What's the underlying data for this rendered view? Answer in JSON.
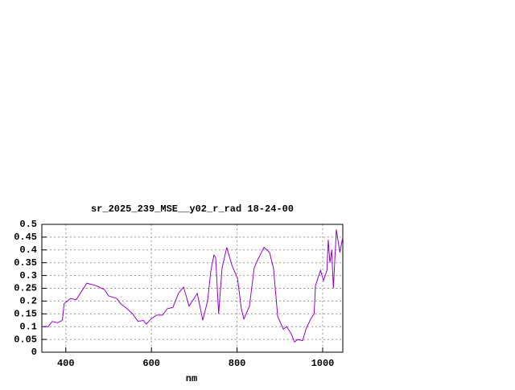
{
  "chart_data": {
    "type": "line",
    "title": "sr_2025_239_MSE__y02_r_rad 18-24-00",
    "x_label": "nm",
    "series": [
      {
        "color": "#9400d3",
        "x": [
          344,
          359,
          368,
          381,
          392,
          396,
          411,
          424,
          449,
          471,
          490,
          500,
          519,
          528,
          543,
          556,
          569,
          581,
          588,
          599,
          612,
          626,
          637,
          650,
          663,
          675,
          688,
          707,
          720,
          731,
          739,
          746,
          750,
          757,
          765,
          776,
          788,
          801,
          810,
          816,
          829,
          840,
          848,
          863,
          876,
          885,
          895,
          908,
          916,
          927,
          934,
          942,
          953,
          961,
          972,
          980,
          983,
          995,
          1002,
          1010,
          1013,
          1017,
          1021,
          1025,
          1032,
          1040,
          1047
        ],
        "values": [
          0.1,
          0.1,
          0.12,
          0.115,
          0.125,
          0.19,
          0.21,
          0.205,
          0.27,
          0.26,
          0.245,
          0.22,
          0.21,
          0.19,
          0.17,
          0.15,
          0.12,
          0.125,
          0.11,
          0.13,
          0.145,
          0.145,
          0.17,
          0.175,
          0.23,
          0.255,
          0.18,
          0.23,
          0.125,
          0.2,
          0.32,
          0.38,
          0.37,
          0.15,
          0.33,
          0.41,
          0.34,
          0.29,
          0.17,
          0.13,
          0.18,
          0.33,
          0.36,
          0.41,
          0.39,
          0.33,
          0.14,
          0.09,
          0.1,
          0.07,
          0.04,
          0.05,
          0.045,
          0.09,
          0.13,
          0.15,
          0.26,
          0.32,
          0.28,
          0.32,
          0.44,
          0.35,
          0.4,
          0.25,
          0.48,
          0.39,
          0.45
        ]
      }
    ],
    "xlim": [
      344,
      1047
    ],
    "xticks": [
      400,
      600,
      800,
      1000
    ],
    "ylim": [
      0,
      0.5
    ],
    "yticks": [
      0,
      0.05,
      0.1,
      0.15,
      0.2,
      0.25,
      0.3,
      0.35,
      0.4,
      0.45,
      0.5
    ],
    "grid": true
  }
}
